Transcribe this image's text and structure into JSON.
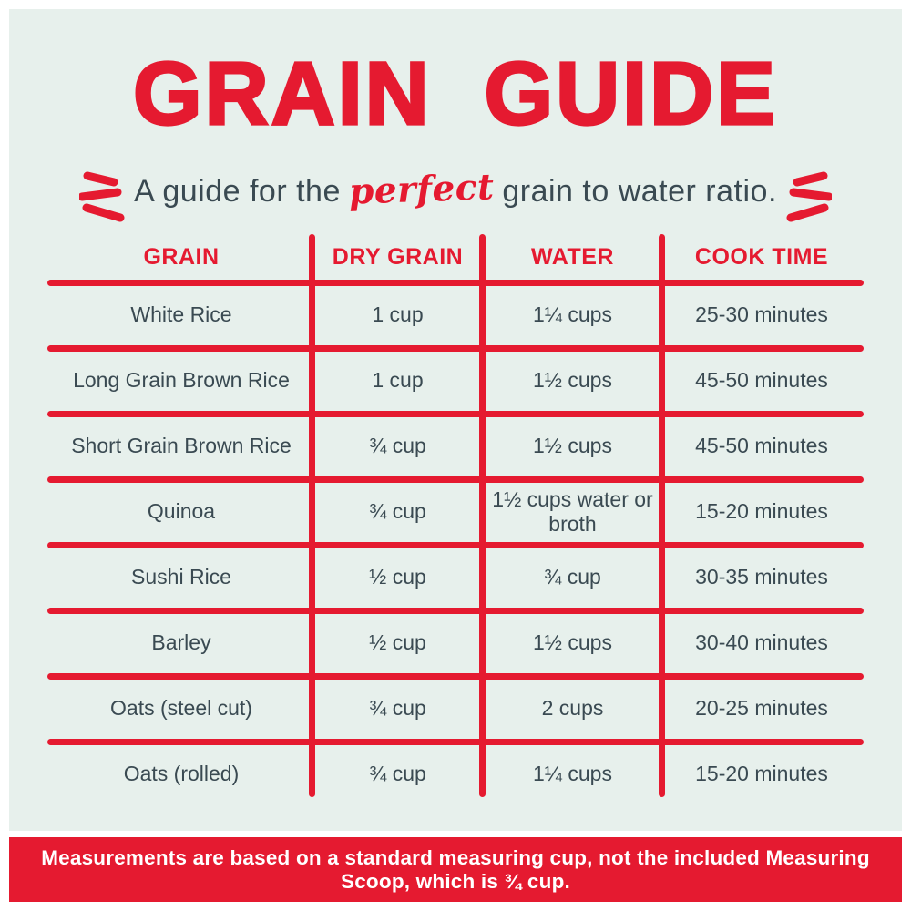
{
  "theme": {
    "accent_red": "#e51a30",
    "panel_mint": "#e7f0ec",
    "text_slate": "#3a4a52",
    "page_white": "#ffffff"
  },
  "header": {
    "title": "GRAIN GUIDE",
    "subtitle_prefix": "A guide for the",
    "subtitle_highlight": "perfect",
    "subtitle_suffix": "grain to water ratio.",
    "left_icon": "emphasis-strokes-left",
    "right_icon": "emphasis-strokes-right"
  },
  "table": {
    "columns": [
      "GRAIN",
      "DRY GRAIN",
      "WATER",
      "COOK TIME"
    ],
    "rows": [
      [
        "White Rice",
        "1 cup",
        "1¼ cups",
        "25-30 minutes"
      ],
      [
        "Long Grain Brown Rice",
        "1 cup",
        "1½ cups",
        "45-50 minutes"
      ],
      [
        "Short Grain Brown Rice",
        "¾ cup",
        "1½ cups",
        "45-50 minutes"
      ],
      [
        "Quinoa",
        "¾ cup",
        "1½ cups water or broth",
        "15-20 minutes"
      ],
      [
        "Sushi Rice",
        "½ cup",
        "¾ cup",
        "30-35 minutes"
      ],
      [
        "Barley",
        "½ cup",
        "1½ cups",
        "30-40 minutes"
      ],
      [
        "Oats (steel cut)",
        "¾ cup",
        "2 cups",
        "20-25 minutes"
      ],
      [
        "Oats (rolled)",
        "¾ cup",
        "1¼ cups",
        "15-20 minutes"
      ]
    ]
  },
  "footer": {
    "note": "Measurements are based on a standard measuring cup, not the included Measuring Scoop, which is ¾ cup."
  }
}
